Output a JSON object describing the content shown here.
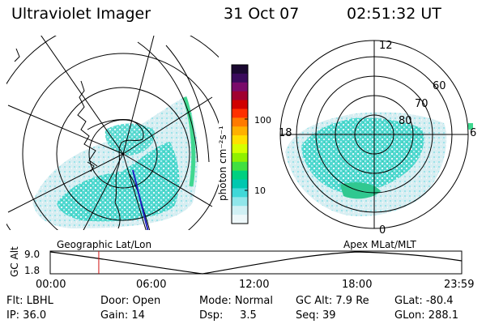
{
  "header": {
    "title": "Ultraviolet Imager",
    "date": "31 Oct 07",
    "time": "02:51:32 UT"
  },
  "colorbar": {
    "unit_label": "photon cm⁻²s⁻¹",
    "ticks": [
      "100",
      "10"
    ],
    "colors": [
      "#1a0830",
      "#3a0a5c",
      "#7a0a6a",
      "#a00030",
      "#d00000",
      "#ff3000",
      "#ff7a00",
      "#ffb000",
      "#ffe000",
      "#d6ff00",
      "#90f000",
      "#40e040",
      "#00d080",
      "#00c8b0",
      "#40d8d8",
      "#90e6ea",
      "#d0f0f4",
      "#eef8fa"
    ]
  },
  "left_panel": {
    "caption": "Geographic Lat/Lon"
  },
  "right_panel": {
    "caption": "Apex MLat/MLT",
    "mlt_labels": {
      "top": "12",
      "left": "18",
      "right": "6",
      "bottom": "0"
    },
    "lat_labels": [
      "60",
      "70",
      "80"
    ]
  },
  "timeline": {
    "ylabel": "GC Alt",
    "ytick_top": "9.0",
    "ytick_bottom": "1.8",
    "xticks": [
      "00:00",
      "06:00",
      "12:00",
      "18:00",
      "23:59"
    ],
    "current_fraction": 0.118
  },
  "info": {
    "flt": "Flt: LBHL",
    "ip": "IP: 36.0",
    "door": "Door: Open",
    "gain": "Gain: 14",
    "mode": "Mode: Normal",
    "dsp": "Dsp:     3.5",
    "gcalt": "GC Alt: 7.9 Re",
    "seq": "Seq: 39",
    "glat": "GLat: -80.4",
    "glon": "GLon: 288.1"
  }
}
